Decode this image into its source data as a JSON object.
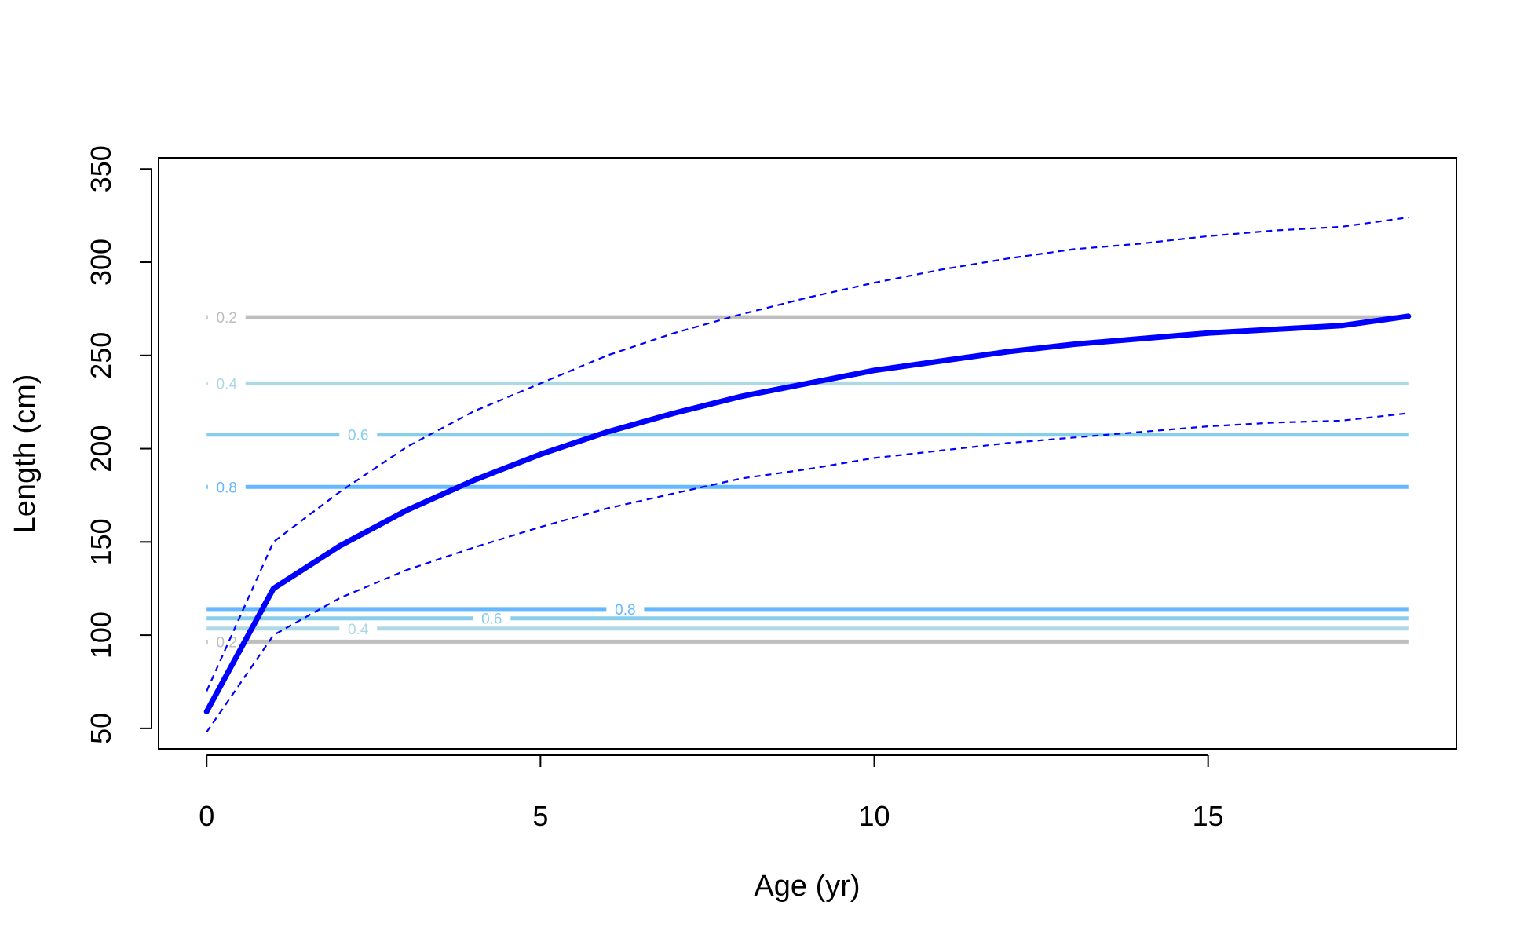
{
  "chart_data": {
    "type": "line",
    "title": "",
    "xlabel": "Age (yr)",
    "ylabel": "Length (cm)",
    "xlim": [
      -0.72,
      18.72
    ],
    "ylim": [
      39,
      356
    ],
    "x_ticks": [
      0,
      5,
      10,
      15
    ],
    "y_ticks": [
      50,
      100,
      150,
      200,
      250,
      300,
      350
    ],
    "x_tick_labels": [
      "0",
      "5",
      "10",
      "15"
    ],
    "y_tick_labels": [
      "50",
      "100",
      "150",
      "200",
      "250",
      "300",
      "350"
    ],
    "grid": false,
    "series": [
      {
        "role": "mean",
        "color": "#0000ff",
        "style": "solid",
        "x": [
          0,
          1,
          2,
          3,
          4,
          5,
          6,
          7,
          8,
          9,
          10,
          11,
          12,
          13,
          14,
          15,
          16,
          17,
          18
        ],
        "y": [
          59,
          125,
          148,
          167,
          183,
          197,
          209,
          219,
          228,
          235,
          242,
          247,
          252,
          256,
          259,
          262,
          264,
          266,
          271
        ]
      },
      {
        "role": "upper",
        "color": "#0000ff",
        "style": "dashed",
        "x": [
          0,
          1,
          2,
          3,
          4,
          5,
          6,
          7,
          8,
          9,
          10,
          11,
          12,
          13,
          14,
          15,
          16,
          17,
          18
        ],
        "y": [
          70,
          150,
          177,
          201,
          220,
          235,
          250,
          262,
          272,
          281,
          289,
          296,
          302,
          307,
          310,
          314,
          317,
          319,
          324
        ]
      },
      {
        "role": "lower",
        "color": "#0000ff",
        "style": "dashed",
        "x": [
          0,
          1,
          2,
          3,
          4,
          5,
          6,
          7,
          8,
          9,
          10,
          11,
          12,
          13,
          14,
          15,
          16,
          17,
          18
        ],
        "y": [
          48,
          100,
          120,
          135,
          147,
          158,
          168,
          176,
          184,
          189,
          195,
          199,
          203,
          206,
          209,
          212,
          214,
          215,
          219
        ]
      }
    ],
    "contours": [
      {
        "level": "0.2",
        "y": 270.5,
        "color": "#bebebe",
        "label_x": 0.3
      },
      {
        "level": "0.4",
        "y": 235,
        "color": "#add8e6",
        "label_x": 0.3
      },
      {
        "level": "0.6",
        "y": 207.5,
        "color": "#87ceeb",
        "label_x": 2.27
      },
      {
        "level": "0.8",
        "y": 179.5,
        "color": "#63b8ff",
        "label_x": 0.3
      },
      {
        "level": "0.8",
        "y": 114,
        "color": "#63b8ff",
        "label_x": 6.27
      },
      {
        "level": "0.6",
        "y": 109,
        "color": "#87ceeb",
        "label_x": 4.27
      },
      {
        "level": "0.4",
        "y": 103.5,
        "color": "#add8e6",
        "label_x": 2.27
      },
      {
        "level": "0.2",
        "y": 96.5,
        "color": "#bebebe",
        "label_x": 0.3
      }
    ],
    "contour_x_range": [
      0,
      18
    ]
  }
}
